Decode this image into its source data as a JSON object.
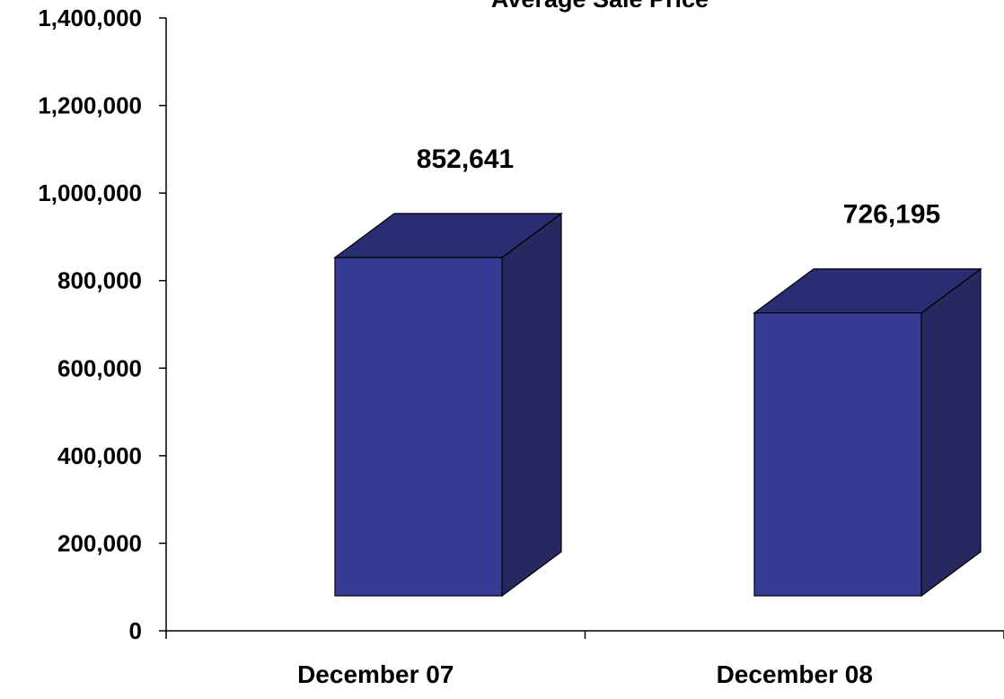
{
  "chart_data": {
    "type": "bar",
    "title": "Average Sale Price",
    "xlabel": "",
    "ylabel": "",
    "categories": [
      "December 07",
      "December 08"
    ],
    "values": [
      852641,
      726195
    ],
    "value_labels": [
      "852,641",
      "726,195"
    ],
    "ylim": [
      0,
      1400000
    ],
    "y_ticks": [
      0,
      200000,
      400000,
      600000,
      800000,
      1000000,
      1200000,
      1400000
    ],
    "y_tick_labels": [
      "0",
      "200,000",
      "400,000",
      "600,000",
      "800,000",
      "1,000,000",
      "1,200,000",
      "1,400,000"
    ],
    "grid": false,
    "legend": "none",
    "style": "3d-column",
    "colors": {
      "bar_front": "#383b95",
      "bar_top": "#2b2d73",
      "bar_side": "#26285f",
      "bar_edge": "#000000",
      "axis": "#000000"
    }
  }
}
